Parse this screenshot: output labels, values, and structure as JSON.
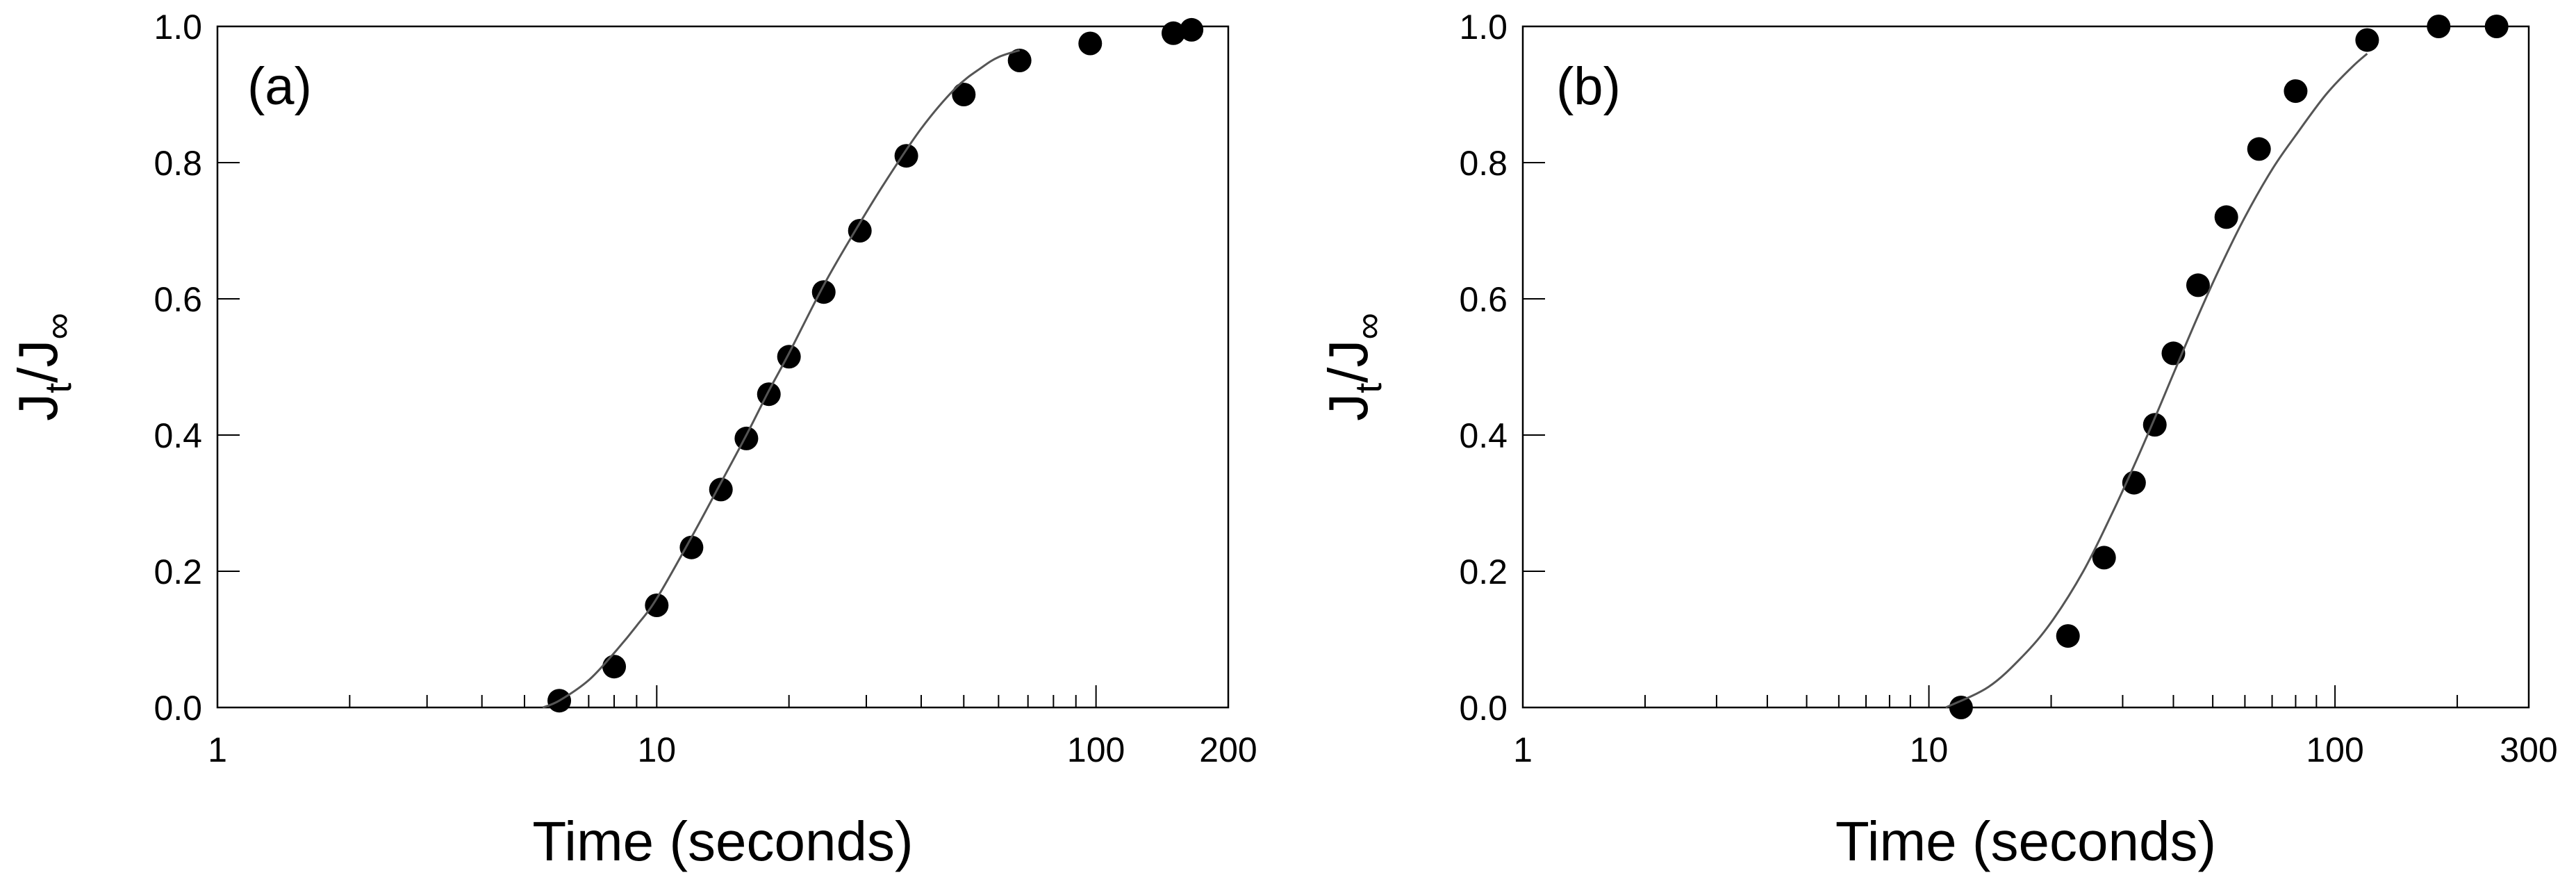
{
  "chart_data": [
    {
      "type": "scatter",
      "panel_label": "(a)",
      "xlabel": "Time (seconds)",
      "ylabel": {
        "main": "J",
        "sub1": "t",
        "mid": "/J",
        "sub2": "∞"
      },
      "x_scale": "log",
      "xlim": [
        1,
        200
      ],
      "ylim": [
        0,
        1
      ],
      "x_ticks": [
        1,
        10,
        100,
        200
      ],
      "x_tick_labels": [
        "1",
        "10",
        "100",
        "200"
      ],
      "y_ticks": [
        0,
        0.2,
        0.4,
        0.6,
        0.8,
        1.0
      ],
      "y_tick_labels": [
        "0.0",
        "0.2",
        "0.4",
        "0.6",
        "0.8",
        "1.0"
      ],
      "grid": false,
      "legend": false,
      "series": [
        {
          "kind": "points",
          "x": [
            6,
            8,
            10,
            12,
            14,
            16,
            18,
            20,
            24,
            29,
            37,
            50,
            67,
            97,
            150,
            165
          ],
          "y": [
            0.01,
            0.06,
            0.15,
            0.235,
            0.32,
            0.395,
            0.46,
            0.515,
            0.61,
            0.7,
            0.81,
            0.9,
            0.95,
            0.975,
            0.99,
            0.995
          ]
        },
        {
          "kind": "fit_curve",
          "x": [
            5.5,
            6,
            7,
            8,
            9,
            10,
            12,
            14,
            16,
            18,
            20,
            24,
            28,
            33,
            40,
            48,
            55,
            60,
            67
          ],
          "y": [
            0.0,
            0.01,
            0.04,
            0.08,
            0.12,
            0.16,
            0.25,
            0.33,
            0.4,
            0.465,
            0.52,
            0.62,
            0.695,
            0.77,
            0.85,
            0.91,
            0.94,
            0.955,
            0.965
          ]
        }
      ]
    },
    {
      "type": "scatter",
      "panel_label": "(b)",
      "xlabel": "Time (seconds)",
      "ylabel": {
        "main": "J",
        "sub1": "t",
        "mid": "/J",
        "sub2": "∞"
      },
      "x_scale": "log",
      "xlim": [
        1,
        300
      ],
      "ylim": [
        0,
        1
      ],
      "x_ticks": [
        1,
        10,
        100,
        300
      ],
      "x_tick_labels": [
        "1",
        "10",
        "100",
        "300"
      ],
      "y_ticks": [
        0,
        0.2,
        0.4,
        0.6,
        0.8,
        1.0
      ],
      "y_tick_labels": [
        "0.0",
        "0.2",
        "0.4",
        "0.6",
        "0.8",
        "1.0"
      ],
      "grid": false,
      "legend": false,
      "series": [
        {
          "kind": "points",
          "x": [
            12,
            22,
            27,
            32,
            36,
            40,
            46,
            54,
            65,
            80,
            120,
            180,
            250
          ],
          "y": [
            0.0,
            0.105,
            0.22,
            0.33,
            0.415,
            0.52,
            0.62,
            0.72,
            0.82,
            0.905,
            0.98,
            1.0,
            1.0
          ]
        },
        {
          "kind": "fit_curve",
          "x": [
            11,
            14,
            17,
            20,
            24,
            28,
            32,
            36,
            40,
            46,
            52,
            60,
            70,
            80,
            95,
            110,
            120
          ],
          "y": [
            0.0,
            0.03,
            0.075,
            0.125,
            0.2,
            0.28,
            0.355,
            0.425,
            0.49,
            0.575,
            0.645,
            0.72,
            0.79,
            0.84,
            0.9,
            0.94,
            0.96
          ]
        }
      ]
    }
  ]
}
